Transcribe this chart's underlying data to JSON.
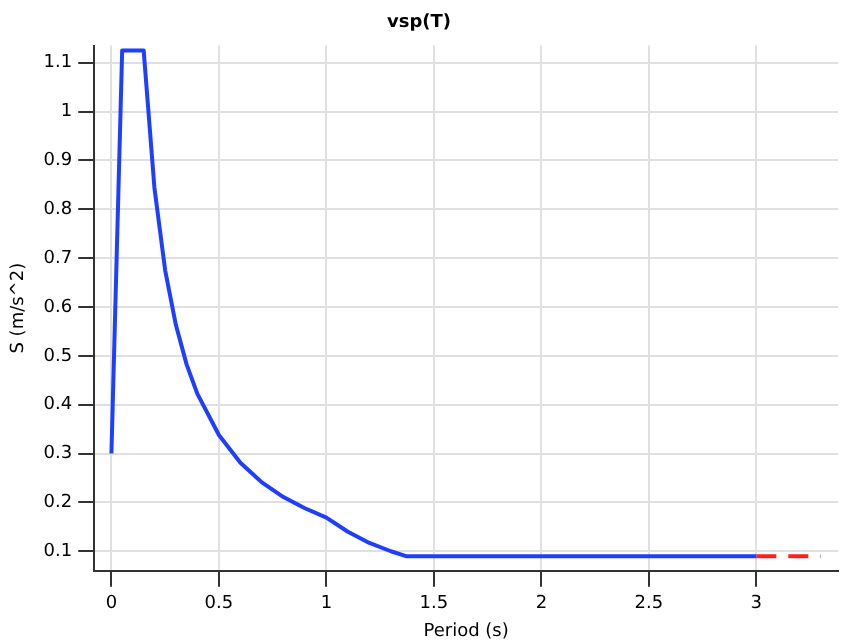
{
  "chart_data": {
    "type": "line",
    "title": "vsp(T)",
    "xlabel": "Period (s)",
    "ylabel": "S (m/s^2)",
    "xlim": [
      -0.08,
      3.38
    ],
    "ylim": [
      0.06,
      1.135
    ],
    "xticks": [
      0,
      0.5,
      1,
      1.5,
      2,
      2.5,
      3
    ],
    "yticks": [
      0.1,
      0.2,
      0.3,
      0.4,
      0.5,
      0.6,
      0.7,
      0.8,
      0.9,
      1,
      1.1
    ],
    "grid": true,
    "marker": "none",
    "series": [
      {
        "color": "#1f3fff",
        "line_style": "solid",
        "x": [
          0,
          0.05,
          0.15,
          0.2,
          0.25,
          0.3,
          0.35,
          0.4,
          0.5,
          0.6,
          0.7,
          0.8,
          0.9,
          1,
          1.1,
          1.2,
          1.3,
          1.37,
          3
        ],
        "values": [
          0.3,
          1.125,
          1.125,
          0.844,
          0.675,
          0.563,
          0.482,
          0.422,
          0.338,
          0.281,
          0.241,
          0.211,
          0.188,
          0.169,
          0.14,
          0.117,
          0.1,
          0.09,
          0.09
        ]
      },
      {
        "color": "#ff2020",
        "line_style": "dashed",
        "x": [
          3,
          3.3
        ],
        "values": [
          0.09,
          0.09
        ]
      }
    ]
  }
}
